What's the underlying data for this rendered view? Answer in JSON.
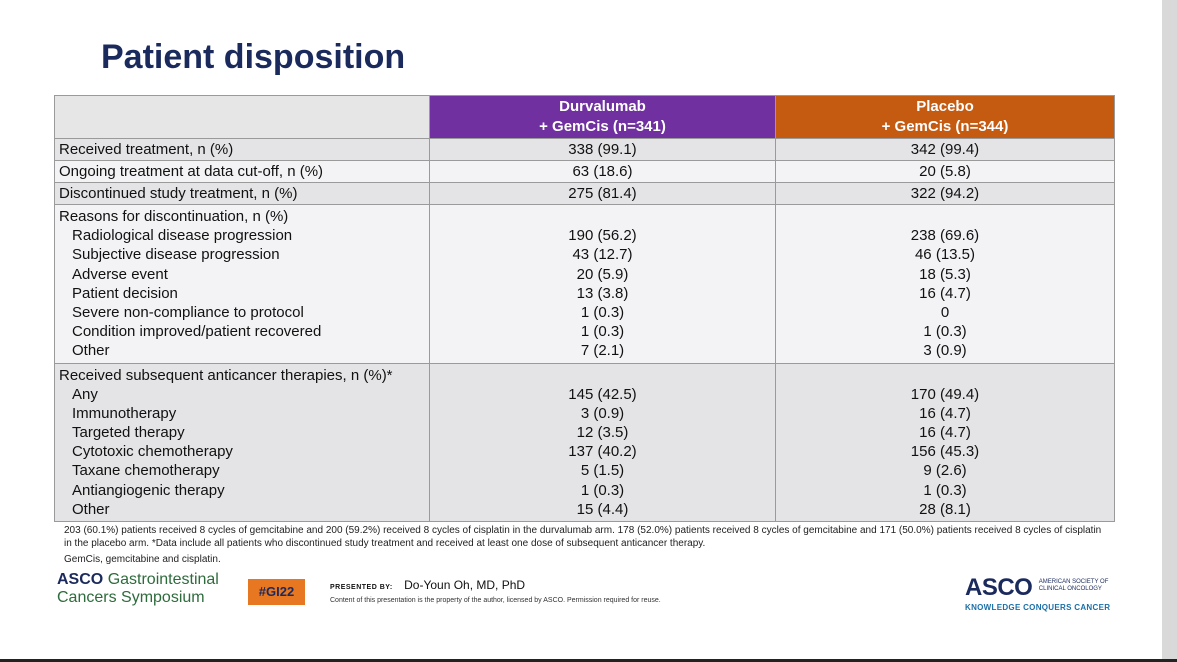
{
  "title": "Patient disposition",
  "table": {
    "headers": {
      "durvalumab": [
        "Durvalumab",
        "+ GemCis (n=341)"
      ],
      "placebo": [
        "Placebo",
        "+ GemCis  (n=344)"
      ]
    },
    "received": {
      "label": "Received treatment, n (%)",
      "durva": "338 (99.1)",
      "placebo": "342 (99.4)"
    },
    "ongoing": {
      "label": "Ongoing treatment at data cut-off, n (%)",
      "durva": "63 (18.6)",
      "placebo": "20 (5.8)"
    },
    "discontinued": {
      "label": "Discontinued study treatment, n (%)",
      "durva": "275 (81.4)",
      "placebo": "322 (94.2)"
    },
    "reasons": {
      "heading": "Reasons for discontinuation, n (%)",
      "items": [
        {
          "label": "Radiological disease progression",
          "durva": "190 (56.2)",
          "placebo": "238 (69.6)"
        },
        {
          "label": "Subjective disease progression",
          "durva": "43 (12.7)",
          "placebo": "46 (13.5)"
        },
        {
          "label": "Adverse event",
          "durva": "20 (5.9)",
          "placebo": "18 (5.3)"
        },
        {
          "label": "Patient decision",
          "durva": "13 (3.8)",
          "placebo": "16 (4.7)"
        },
        {
          "label": "Severe non-compliance to protocol",
          "durva": "1 (0.3)",
          "placebo": "0"
        },
        {
          "label": "Condition improved/patient recovered",
          "durva": "1 (0.3)",
          "placebo": "1 (0.3)"
        },
        {
          "label": "Other",
          "durva": "7 (2.1)",
          "placebo": "3 (0.9)"
        }
      ]
    },
    "subsequent": {
      "heading": "Received subsequent anticancer therapies, n (%)*",
      "items": [
        {
          "label": "Any",
          "durva": "145 (42.5)",
          "placebo": "170 (49.4)"
        },
        {
          "label": "Immunotherapy",
          "durva": "3 (0.9)",
          "placebo": "16 (4.7)"
        },
        {
          "label": "Targeted therapy",
          "durva": "12 (3.5)",
          "placebo": "16 (4.7)"
        },
        {
          "label": "Cytotoxic chemotherapy",
          "durva": "137 (40.2)",
          "placebo": "156 (45.3)"
        },
        {
          "label": "Taxane chemotherapy",
          "durva": "5 (1.5)",
          "placebo": "9 (2.6)"
        },
        {
          "label": "Antiangiogenic therapy",
          "durva": "1 (0.3)",
          "placebo": "1 (0.3)"
        },
        {
          "label": "Other",
          "durva": "15 (4.4)",
          "placebo": "28 (8.1)"
        }
      ]
    }
  },
  "footnotes": {
    "note1": "203 (60.1%) patients received 8 cycles of gemcitabine and 200 (59.2%) received 8 cycles of cisplatin in the durvalumab arm. 178 (52.0%) patients received 8 cycles of gemcitabine and 171 (50.0%) patients received 8 cycles of cisplatin in the placebo arm. *Data include all patients who discontinued study treatment and received at least one dose of subsequent anticancer therapy.",
    "note2": "GemCis, gemcitabine and cisplatin."
  },
  "footer": {
    "symposium_asco": "ASCO",
    "symposium_line1": "Gastrointestinal",
    "symposium_line2": "Cancers Symposium",
    "hashtag": "#GI22",
    "presented_by_label": "PRESENTED BY:",
    "presenter": "Do-Youn Oh, MD, PhD",
    "rights": "Content of this presentation is the property of the author, licensed by ASCO. Permission required for reuse.",
    "asco_logo": "ASCO",
    "asco_society_line1": "AMERICAN SOCIETY OF",
    "asco_society_line2": "CLINICAL ONCOLOGY",
    "asco_tagline": "KNOWLEDGE CONQUERS CANCER"
  },
  "colors": {
    "title": "#1b2a5c",
    "durvalumab_header": "#7030a0",
    "placebo_header": "#c55a11",
    "hashtag_bg": "#e87722"
  }
}
